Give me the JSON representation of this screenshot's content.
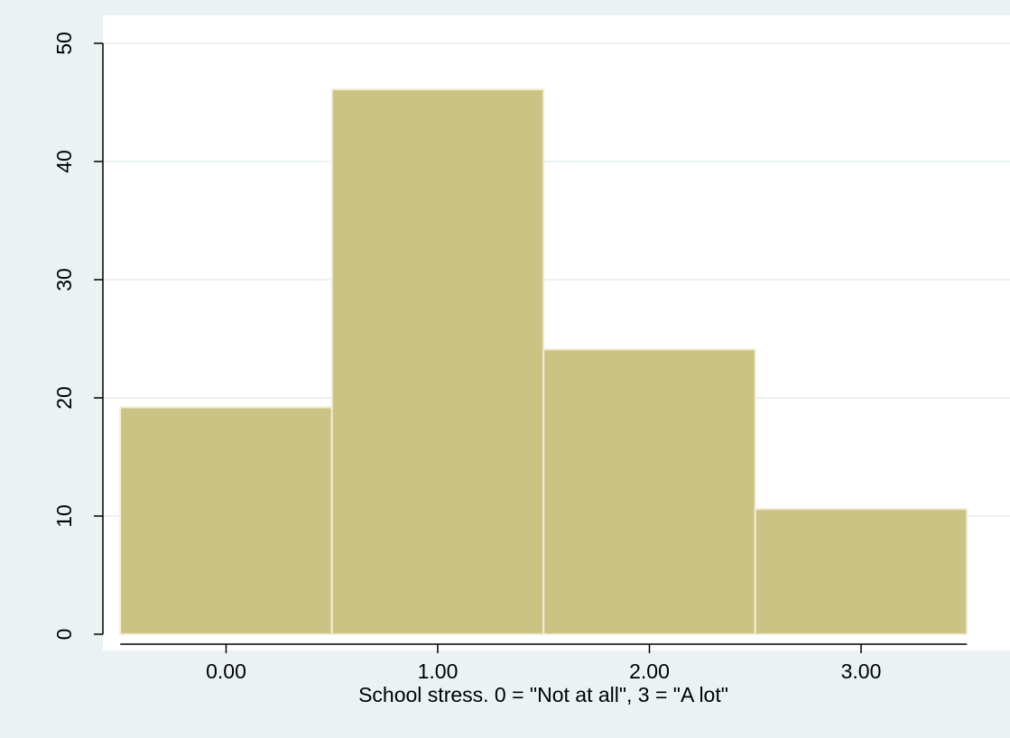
{
  "chart_data": {
    "type": "bar",
    "categories": [
      "0.00",
      "1.00",
      "2.00",
      "3.00"
    ],
    "x": [
      0,
      1,
      2,
      3
    ],
    "values": [
      19.2,
      46.1,
      24.1,
      10.6
    ],
    "xlabel": "School stress. 0 = \"Not at all\", 3 = \"A lot\"",
    "ylabel": "",
    "xlim": [
      -0.6,
      3.6
    ],
    "ylim": [
      0,
      50
    ],
    "yticks": [
      0,
      10,
      20,
      30,
      40,
      50
    ],
    "grid": true,
    "colors": {
      "bar_fill": "#ccc283",
      "bar_stroke": "#f2eed5",
      "page_background": "#eaf2f3",
      "plot_background": "#ffffff",
      "grid": "#eaf2f3",
      "axis": "#000000"
    }
  }
}
